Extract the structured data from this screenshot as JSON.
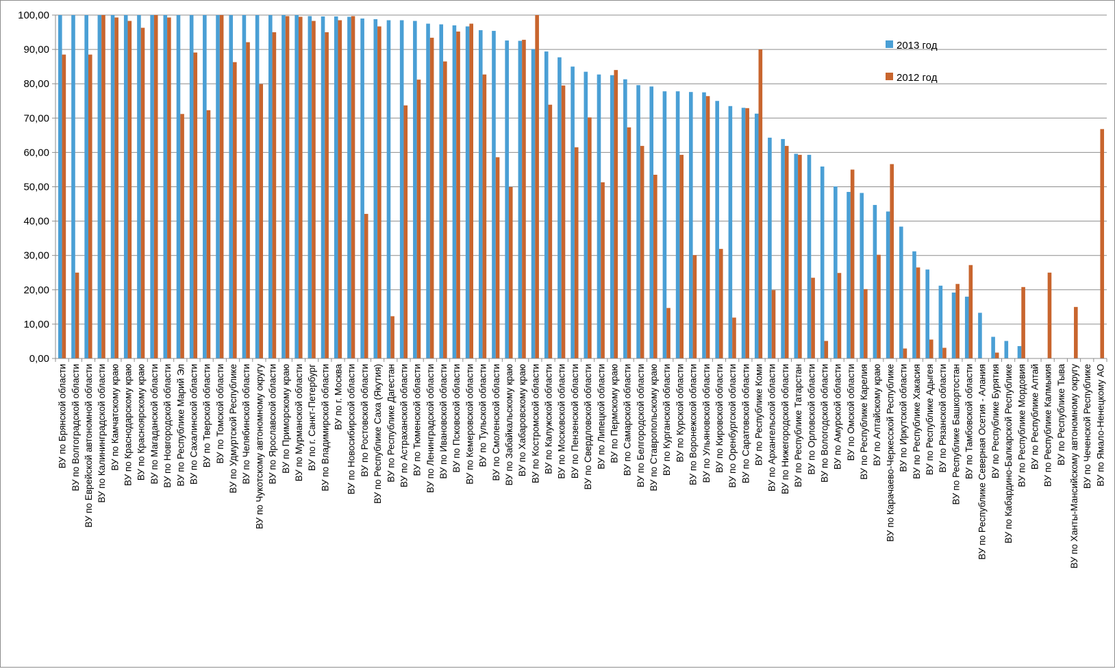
{
  "chart_data": {
    "type": "bar",
    "title": "",
    "xlabel": "",
    "ylabel": "",
    "ylim": [
      0,
      100
    ],
    "yticks": [
      "0,00",
      "10,00",
      "20,00",
      "30,00",
      "40,00",
      "50,00",
      "60,00",
      "70,00",
      "80,00",
      "90,00",
      "100,00"
    ],
    "grid": "horizontal",
    "legend_position": "top-right",
    "categories": [
      "ВУ по Брянской области",
      "ВУ по Волгоградской области",
      "ВУ по Еврейской автономной области",
      "ВУ по Калининградской области",
      "ВУ по Камчатскому краю",
      "ВУ по Краснодарскому краю",
      "ВУ по Красноярскому краю",
      "ВУ по Магаданской области",
      "ВУ по Новгородской области",
      "ВУ по Республике Марий Эл",
      "ВУ по Сахалинской области",
      "ВУ по Тверской области",
      "ВУ по Томской области",
      "ВУ по Удмуртской Республике",
      "ВУ по Челябинской области",
      "ВУ по Чукотскому автономному округу",
      "ВУ по Ярославской области",
      "ВУ по Приморскому краю",
      "ВУ по Мурманской области",
      "ВУ по г. Санкт-Петербург",
      "ВУ по Владимирской области",
      "ВУ по г. Москва",
      "ВУ по Новосибирской области",
      "ВУ по Ростовской области",
      "ВУ по Республике Саха (Якутия)",
      "ВУ по Республике Дагестан",
      "ВУ по Астраханской области",
      "ВУ по Тюменской области",
      "ВУ по Ленинградской области",
      "ВУ по Ивановской области",
      "ВУ по Псковской области",
      "ВУ по Кемеровской области",
      "ВУ по Тульской области",
      "ВУ по Смоленской области",
      "ВУ по Забайкальскому краю",
      "ВУ по Хабаровскому краю",
      "ВУ по Костромской области",
      "ВУ по Калужской области",
      "ВУ по Московской области",
      "ВУ по Пензенской области",
      "ВУ по Свердловской области",
      "ВУ по Липецкой области",
      "ВУ по Пермскому краю",
      "ВУ по Самарской области",
      "ВУ по Белгородской области",
      "ВУ по Ставропольскому краю",
      "ВУ по Курганской области",
      "ВУ по Курской области",
      "ВУ по Воронежской области",
      "ВУ по Ульяновской области",
      "ВУ по Кировской области",
      "ВУ по Оренбургской области",
      "ВУ по Саратовской области",
      "ВУ по Республике Коми",
      "ВУ по Архангельской области",
      "ВУ по Нижегородской области",
      "ВУ по Республике Татарстан",
      "ВУ по Орловской области",
      "ВУ по Вологодской области",
      "ВУ по Амурской области",
      "ВУ по Омской области",
      "ВУ по Республике Карелия",
      "ВУ по Алтайскому краю",
      "ВУ по Карачаево-Черкесской Республике",
      "ВУ по Иркутской области",
      "ВУ по Республике Хакасия",
      "ВУ по Республике Адыгея",
      "ВУ по Рязанской области",
      "ВУ по Республике Башкортостан",
      "ВУ по Тамбовской области",
      "ВУ по Республике Северная Осетия - Алания",
      "ВУ по Республике Бурятия",
      "ВУ по Кабардино-Балкарской Республике",
      "ВУ по Республике Мордовия",
      "ВУ по Республике Алтай",
      "ВУ по Республике Калмыкия",
      "ВУ по Республике Тыва",
      "ВУ по Ханты-Мансийскому автономному округу",
      "ВУ по Чеченской Республике",
      "ВУ по Ямало-Ненецкому АО"
    ],
    "series": [
      {
        "name": "2013 год",
        "color": "#4A9FD5",
        "values": [
          100,
          100,
          100,
          100,
          100,
          100,
          100,
          100,
          100,
          100,
          100,
          100,
          100,
          100,
          100,
          100,
          100,
          100,
          100,
          99.7,
          99.6,
          99.6,
          99.5,
          99,
          98.8,
          98.5,
          98.5,
          98.3,
          97.5,
          97.3,
          97,
          96.7,
          95.6,
          95.4,
          92.6,
          92.5,
          90.1,
          89.4,
          87.7,
          85,
          83.5,
          82.7,
          82.5,
          81.3,
          79.6,
          79.2,
          77.8,
          77.8,
          77.6,
          77.5,
          75,
          73.5,
          73,
          71.3,
          64.3,
          63.9,
          59.6,
          59.3,
          55.9,
          50.1,
          48.5,
          48.2,
          44.7,
          42.8,
          38.4,
          31.2,
          25.9,
          21.2,
          19.2,
          18,
          13.3,
          6.3,
          5.1,
          3.6,
          0,
          0,
          0,
          0,
          0,
          0
        ]
      },
      {
        "name": "2012 год",
        "color": "#C8652E",
        "values": [
          88.5,
          25,
          88.5,
          100,
          99.3,
          98.3,
          96.3,
          100,
          99.3,
          71.2,
          89.1,
          72.3,
          100,
          86.3,
          92.1,
          79.9,
          95,
          99.7,
          99.5,
          98.3,
          95,
          98.5,
          99.7,
          42.1,
          96.7,
          12.3,
          73.7,
          81.2,
          93.4,
          86.5,
          95.2,
          97.5,
          82.7,
          58.6,
          49.9,
          92.8,
          100,
          73.9,
          79.5,
          61.5,
          70.2,
          51.3,
          84,
          67.3,
          61.9,
          53.5,
          14.7,
          59.3,
          30.1,
          76.4,
          31.9,
          11.9,
          72.9,
          90,
          19.9,
          61.9,
          59.3,
          23.5,
          5.1,
          24.9,
          55,
          20.2,
          30.2,
          56.6,
          2.9,
          26.5,
          5.5,
          3.1,
          21.7,
          27.2,
          0,
          1.7,
          0,
          20.8,
          0,
          25,
          0,
          15,
          0,
          66.8
        ]
      }
    ]
  },
  "legend": {
    "items": [
      {
        "label": "2013 год",
        "color": "#4A9FD5"
      },
      {
        "label": "2012 год",
        "color": "#C8652E"
      }
    ]
  }
}
